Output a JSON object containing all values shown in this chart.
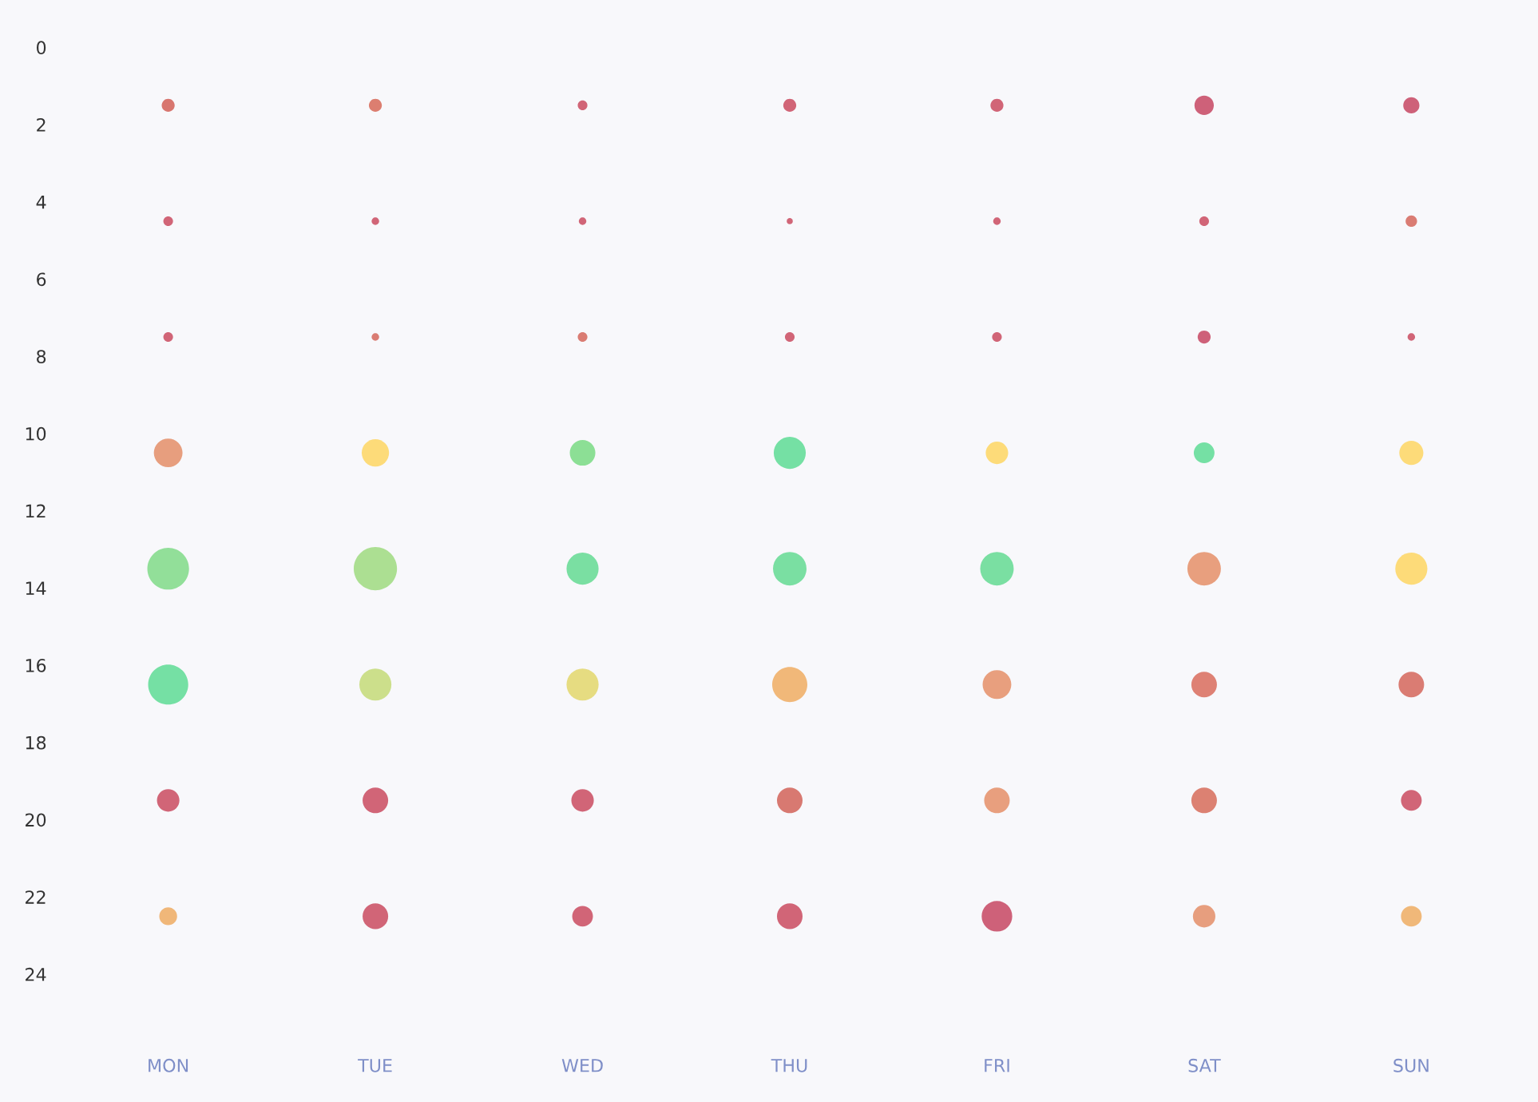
{
  "chart_data": {
    "type": "bubble",
    "categories": [
      "MON",
      "TUE",
      "WED",
      "THU",
      "FRI",
      "SAT",
      "SUN"
    ],
    "ylim": [
      24,
      0
    ],
    "yticks": [
      0,
      2,
      4,
      6,
      8,
      10,
      12,
      14,
      16,
      18,
      20,
      22,
      24
    ],
    "grid": false,
    "legend": false,
    "series": [
      {
        "values": [
          1.5,
          1.5,
          1.5,
          1.5,
          1.5,
          1.5,
          1.5
        ],
        "sizes": [
          0.09,
          0.09,
          0.05,
          0.09,
          0.09,
          0.2,
          0.14
        ],
        "colors": [
          "#d4675f",
          "#d87060",
          "#cc5468",
          "#cc5468",
          "#cc5468",
          "#c9506a",
          "#c9506a"
        ]
      },
      {
        "values": [
          4.5,
          4.5,
          4.5,
          4.5,
          4.5,
          4.5,
          4.5
        ],
        "sizes": [
          0.05,
          0.03,
          0.03,
          0.02,
          0.03,
          0.05,
          0.07
        ],
        "colors": [
          "#cc5468",
          "#cc5468",
          "#cc5468",
          "#cc5468",
          "#cc5468",
          "#cc5468",
          "#d66e64"
        ]
      },
      {
        "values": [
          7.5,
          7.5,
          7.5,
          7.5,
          7.5,
          7.5,
          7.5
        ],
        "sizes": [
          0.05,
          0.03,
          0.05,
          0.05,
          0.05,
          0.09,
          0.03
        ],
        "colors": [
          "#cc5468",
          "#d66e64",
          "#d66e64",
          "#cc5468",
          "#cc5468",
          "#c9506a",
          "#cc5468"
        ]
      },
      {
        "values": [
          10.5,
          10.5,
          10.5,
          10.5,
          10.5,
          10.5,
          10.5
        ],
        "sizes": [
          0.44,
          0.4,
          0.35,
          0.55,
          0.27,
          0.23,
          0.31
        ],
        "colors": [
          "#e49470",
          "#fdd76a",
          "#7fdc8a",
          "#66dd9a",
          "#fdd76a",
          "#66dd9a",
          "#fdd76a"
        ]
      },
      {
        "values": [
          13.5,
          13.5,
          13.5,
          13.5,
          13.5,
          13.5,
          13.5
        ],
        "sizes": [
          0.93,
          1,
          0.55,
          0.6,
          0.6,
          0.6,
          0.55
        ],
        "colors": [
          "#86dc8e",
          "#a3dc86",
          "#6bdc98",
          "#6bdc98",
          "#6bdc98",
          "#e59570",
          "#fdd76a"
        ]
      },
      {
        "values": [
          16.5,
          16.5,
          16.5,
          16.5,
          16.5,
          16.5,
          16.5
        ],
        "sizes": [
          0.86,
          0.55,
          0.55,
          0.66,
          0.44,
          0.35,
          0.35
        ],
        "colors": [
          "#66dd9a",
          "#c7dc7e",
          "#e3d873",
          "#efb06a",
          "#e59570",
          "#da7365",
          "#d66e64"
        ]
      },
      {
        "values": [
          19.5,
          19.5,
          19.5,
          19.5,
          19.5,
          19.5,
          19.5
        ],
        "sizes": [
          0.27,
          0.35,
          0.27,
          0.35,
          0.35,
          0.35,
          0.23
        ],
        "colors": [
          "#cc5468",
          "#cc5468",
          "#cc5468",
          "#d46a62",
          "#e59570",
          "#d87363",
          "#cc5468"
        ]
      },
      {
        "values": [
          22.5,
          22.5,
          22.5,
          22.5,
          22.5,
          22.5,
          22.5
        ],
        "sizes": [
          0.17,
          0.35,
          0.23,
          0.35,
          0.5,
          0.27,
          0.23
        ],
        "colors": [
          "#eeaf6a",
          "#cc5468",
          "#cc5468",
          "#cc5468",
          "#c9506a",
          "#e49470",
          "#eeb06a"
        ]
      }
    ]
  }
}
